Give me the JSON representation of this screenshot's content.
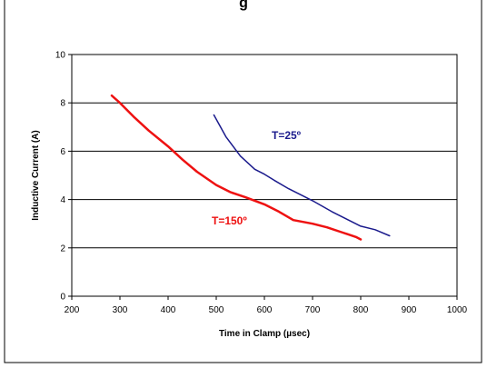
{
  "page_title_fragment": "g",
  "chart_data": {
    "type": "line",
    "xlabel": "Time in Clamp (µsec)",
    "ylabel": "Inductive Current (A)",
    "xlim": [
      200,
      1000
    ],
    "ylim": [
      0,
      10
    ],
    "xticks": [
      200,
      300,
      400,
      500,
      600,
      700,
      800,
      900,
      1000
    ],
    "yticks": [
      0,
      2,
      4,
      6,
      8,
      10
    ],
    "grid": "horizontal",
    "series": [
      {
        "name": "T=25º",
        "color": "#1a1a8c",
        "x": [
          495,
          520,
          550,
          580,
          600,
          620,
          650,
          680,
          700,
          740,
          770,
          800,
          830,
          860
        ],
        "y": [
          7.5,
          6.6,
          5.8,
          5.25,
          5.05,
          4.8,
          4.45,
          4.15,
          3.95,
          3.5,
          3.2,
          2.9,
          2.75,
          2.5
        ]
      },
      {
        "name": "T=150º",
        "color": "#ee1111",
        "x": [
          283,
          300,
          330,
          360,
          400,
          430,
          460,
          500,
          530,
          560,
          600,
          630,
          660,
          700,
          730,
          760,
          790,
          800
        ],
        "y": [
          8.3,
          8.0,
          7.4,
          6.85,
          6.2,
          5.65,
          5.15,
          4.6,
          4.3,
          4.1,
          3.8,
          3.5,
          3.15,
          3.0,
          2.85,
          2.65,
          2.45,
          2.35
        ]
      }
    ]
  }
}
